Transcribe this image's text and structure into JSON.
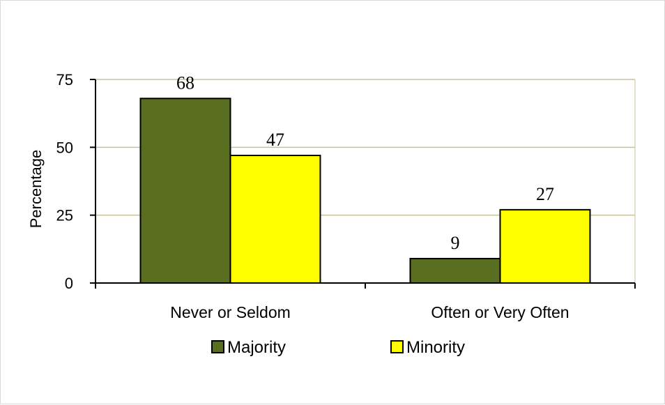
{
  "chart_data": {
    "type": "bar",
    "categories": [
      "Never or Seldom",
      "Often or Very Often"
    ],
    "series": [
      {
        "name": "Majority",
        "values": [
          68,
          9
        ],
        "color": "#5a6e22"
      },
      {
        "name": "Minority",
        "values": [
          47,
          27
        ],
        "color": "#ffff00"
      }
    ],
    "data_labels": [
      [
        "68",
        "9"
      ],
      [
        "47",
        "27"
      ]
    ],
    "ylabel": "Percentage",
    "ylim": [
      0,
      75
    ],
    "yticks": [
      "0",
      "25",
      "50",
      "75"
    ],
    "grid": true,
    "grid_color": "#c9c29a",
    "legend_position": "bottom"
  }
}
